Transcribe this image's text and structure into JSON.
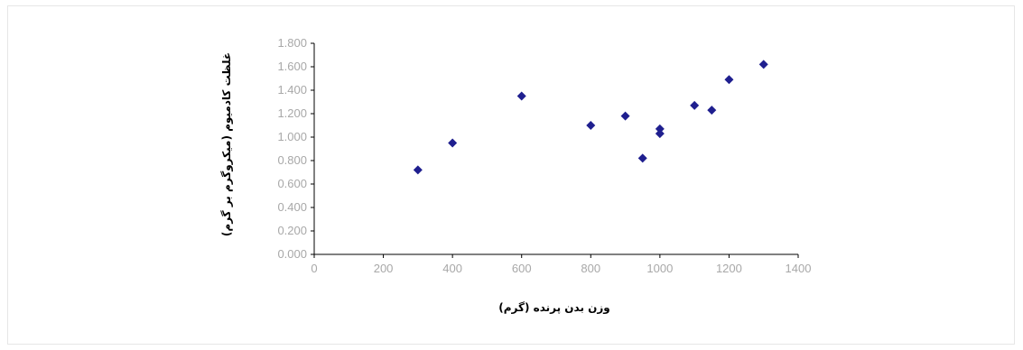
{
  "chart_data": {
    "type": "scatter",
    "title": "",
    "xlabel": "وزن بدن پرنده (گرم)",
    "ylabel": "غلظت کادميوم (ميکروگرم بر گرم)",
    "xlim": [
      0,
      1400
    ],
    "ylim": [
      0,
      1.8
    ],
    "x_ticks": [
      0,
      200,
      400,
      600,
      800,
      1000,
      1200,
      1400
    ],
    "x_tick_labels": [
      "0",
      "200",
      "400",
      "600",
      "800",
      "1000",
      "1200",
      "1400"
    ],
    "y_ticks": [
      0,
      0.2,
      0.4,
      0.6,
      0.8,
      1.0,
      1.2,
      1.4,
      1.6,
      1.8
    ],
    "y_tick_labels": [
      "0.000",
      "0.200",
      "0.400",
      "0.600",
      "0.800",
      "1.000",
      "1.200",
      "1.400",
      "1.600",
      "1.800"
    ],
    "grid": false,
    "legend": false,
    "marker_color": "#1f1f8f",
    "series": [
      {
        "points": [
          {
            "x": 300,
            "y": 0.72
          },
          {
            "x": 400,
            "y": 0.95
          },
          {
            "x": 600,
            "y": 1.35
          },
          {
            "x": 800,
            "y": 1.1
          },
          {
            "x": 900,
            "y": 1.18
          },
          {
            "x": 950,
            "y": 0.82
          },
          {
            "x": 1000,
            "y": 1.07
          },
          {
            "x": 1000,
            "y": 1.03
          },
          {
            "x": 1100,
            "y": 1.27
          },
          {
            "x": 1150,
            "y": 1.23
          },
          {
            "x": 1200,
            "y": 1.49
          },
          {
            "x": 1300,
            "y": 1.62
          }
        ]
      }
    ]
  }
}
